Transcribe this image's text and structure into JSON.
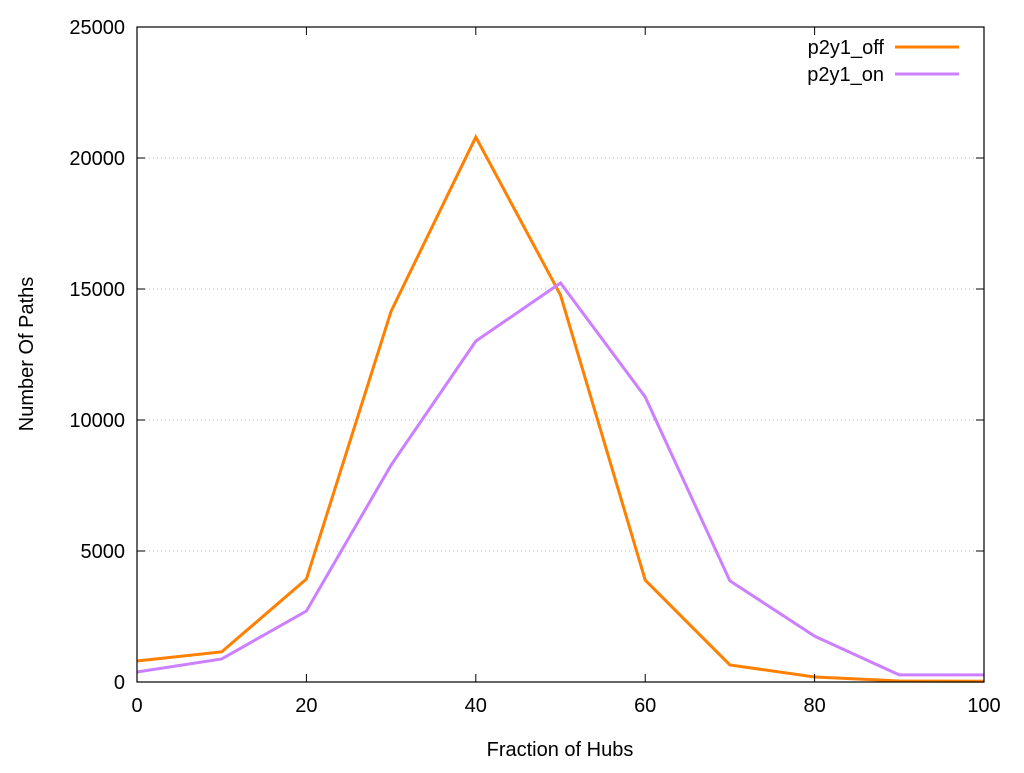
{
  "chart_data": {
    "type": "line",
    "title": "",
    "xlabel": "Fraction of Hubs",
    "ylabel": "Number Of Paths",
    "xlim": [
      0,
      100
    ],
    "ylim": [
      0,
      25000
    ],
    "xticks": [
      "0",
      "20",
      "40",
      "60",
      "80",
      "100"
    ],
    "yticks": [
      "0",
      "5000",
      "10000",
      "15000",
      "20000",
      "25000"
    ],
    "grid": "horizontal dotted",
    "legend_position": "top-right",
    "x": [
      0,
      10,
      20,
      30,
      40,
      50,
      60,
      70,
      80,
      90,
      100
    ],
    "series": [
      {
        "name": "p2y1_off",
        "color": "#ff8000",
        "values": [
          800,
          1150,
          3930,
          14150,
          20800,
          14770,
          3890,
          650,
          190,
          40,
          30
        ]
      },
      {
        "name": "p2y1_on",
        "color": "#cc80ff",
        "values": [
          380,
          880,
          2710,
          8280,
          13010,
          15230,
          10880,
          3860,
          1750,
          270,
          270
        ]
      }
    ]
  }
}
